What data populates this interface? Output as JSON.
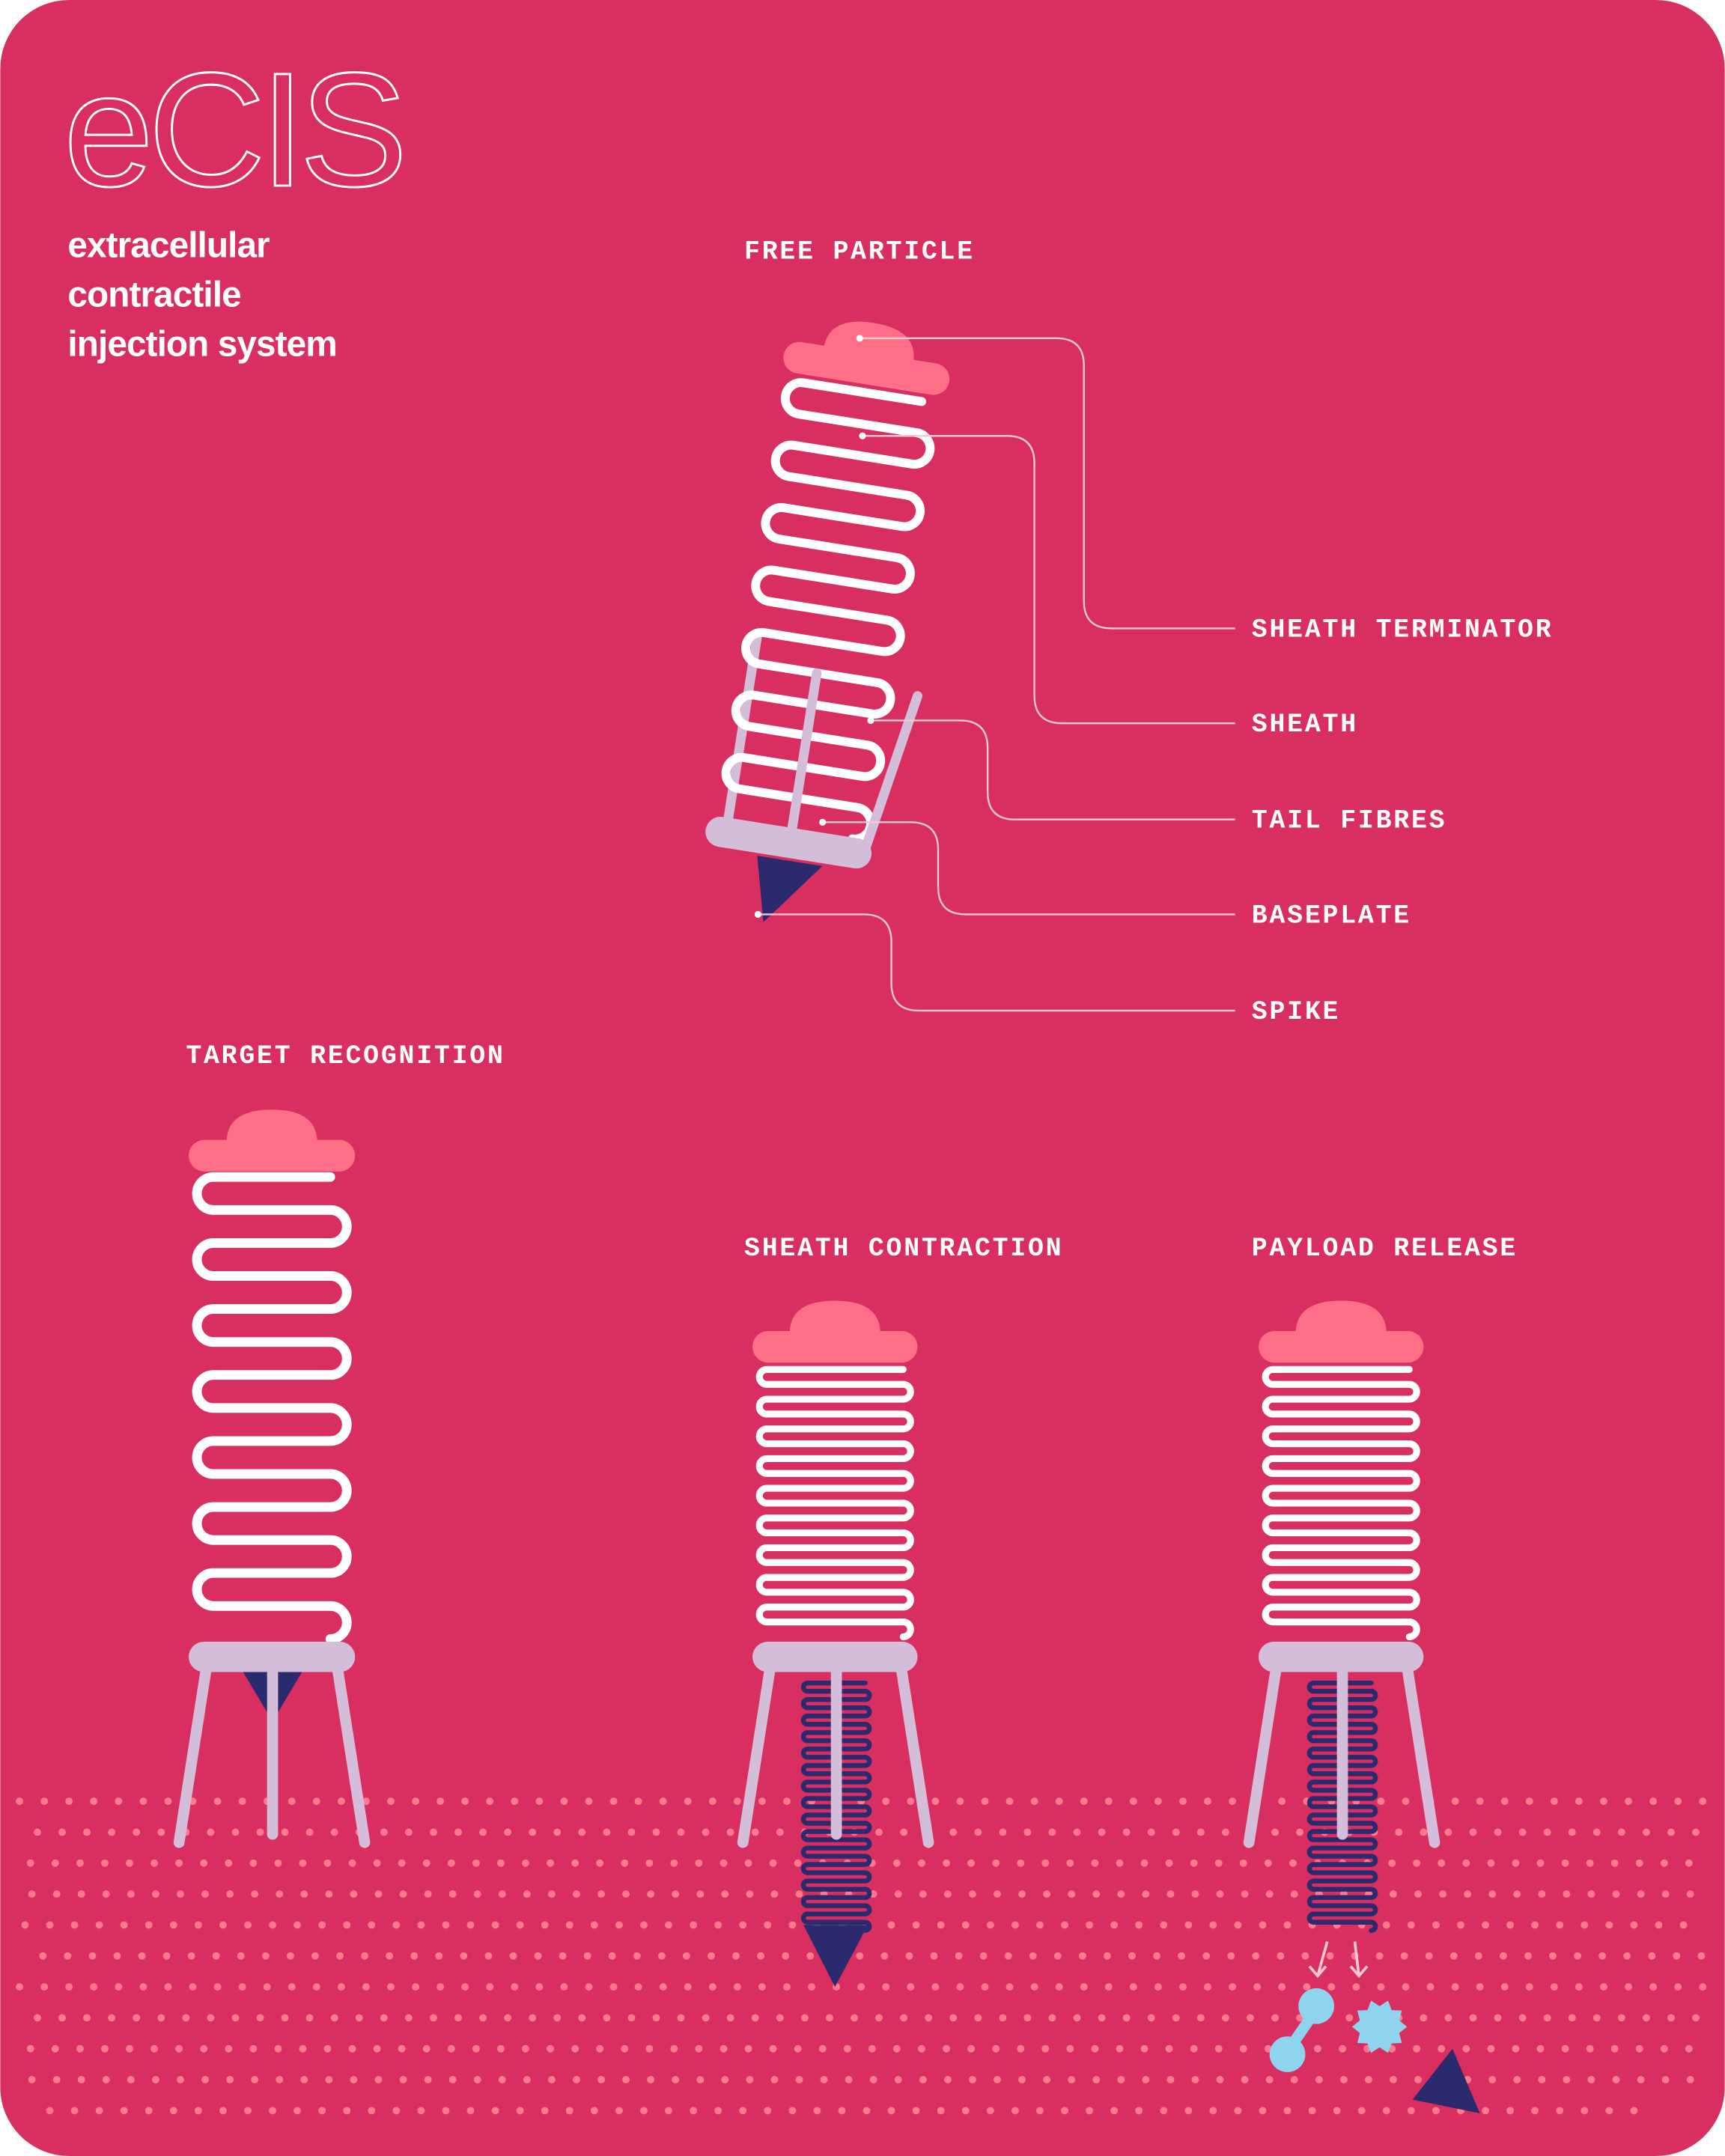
{
  "header": {
    "title": "eCIS",
    "subtitle": [
      "extracellular",
      "contractile",
      "injection system"
    ]
  },
  "free_particle": {
    "label": "FREE PARTICLE",
    "parts": [
      "SHEATH TERMINATOR",
      "SHEATH",
      "TAIL FIBRES",
      "BASEPLATE",
      "SPIKE"
    ]
  },
  "stages": [
    "TARGET RECOGNITION",
    "SHEATH CONTRACTION",
    "PAYLOAD RELEASE"
  ]
}
